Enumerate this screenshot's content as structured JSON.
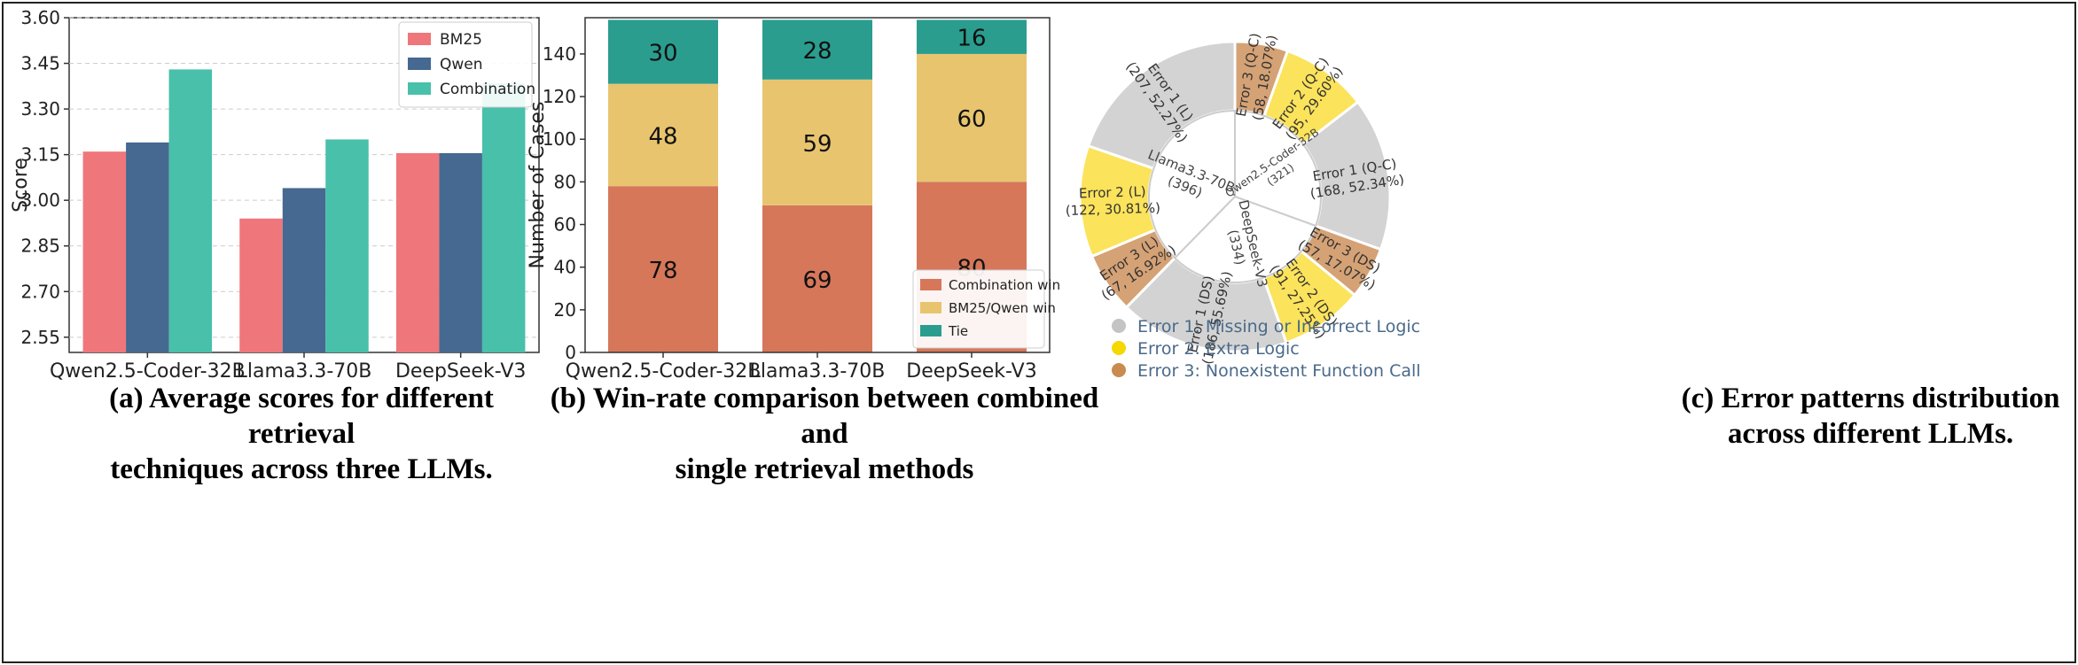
{
  "panel_a": {
    "caption_line1": "(a) Average scores for different retrieval",
    "caption_line2": "techniques across three LLMs."
  },
  "panel_b": {
    "caption_line1": "(b) Win-rate comparison between combined and",
    "caption_line2": "single retrieval methods"
  },
  "panel_c": {
    "caption_line1": "(c) Error patterns distribution",
    "caption_line2": "across different LLMs."
  },
  "chart_data": [
    {
      "type": "bar",
      "title": "",
      "xlabel": "",
      "ylabel": "Score",
      "ylim": [
        2.5,
        3.6
      ],
      "yticks": [
        "2.55",
        "2.70",
        "2.85",
        "3.00",
        "3.15",
        "3.30",
        "3.45",
        "3.60"
      ],
      "categories": [
        "Qwen2.5-Coder-32B",
        "Llama3.3-70B",
        "DeepSeek-V3"
      ],
      "series": [
        {
          "name": "BM25",
          "color": "#EF767A",
          "values": [
            3.16,
            2.94,
            3.155
          ]
        },
        {
          "name": "Qwen",
          "color": "#456990",
          "values": [
            3.19,
            3.04,
            3.155
          ]
        },
        {
          "name": "Combination",
          "color": "#48C0AA",
          "values": [
            3.43,
            3.2,
            3.385
          ]
        }
      ],
      "legend": "top-right",
      "grid": "horizontal dashed"
    },
    {
      "type": "bar",
      "stacked": true,
      "title": "",
      "xlabel": "",
      "ylabel": "Number of Cases",
      "ylim": [
        0,
        157
      ],
      "yticks": [
        "0",
        "20",
        "40",
        "60",
        "80",
        "100",
        "120",
        "140"
      ],
      "categories": [
        "Qwen2.5-Coder-32B",
        "Llama3.3-70B",
        "DeepSeek-V3"
      ],
      "series": [
        {
          "name": "Combination win",
          "color": "#D6775A",
          "values": [
            78,
            69,
            80
          ],
          "labels": [
            "78",
            "69",
            "80"
          ]
        },
        {
          "name": "BM25/Qwen win",
          "color": "#E8C46F",
          "values": [
            48,
            59,
            60
          ],
          "labels": [
            "48",
            "59",
            "60"
          ]
        },
        {
          "name": "Tie",
          "color": "#2A9D8F",
          "values": [
            30,
            28,
            16
          ],
          "labels": [
            "30",
            "28",
            "16"
          ]
        }
      ],
      "legend": "bottom-right"
    },
    {
      "type": "pie",
      "subtype": "sunburst",
      "inner": [
        {
          "label": "Qwen2.5-Coder-32B",
          "count_label": "(321)",
          "value": 321
        },
        {
          "label": "DeepSeek-V3",
          "count_label": "(334)",
          "value": 334
        },
        {
          "label": "Llama3.3-70B",
          "count_label": "(396)",
          "value": 396
        }
      ],
      "outer": [
        {
          "label": "Error 3 (Q-C)",
          "detail": "(58, 18.07%)",
          "value": 58,
          "category": 3
        },
        {
          "label": "Error 2 (Q-C)",
          "detail": "(95, 29.60%)",
          "value": 95,
          "category": 2
        },
        {
          "label": "Error 1 (Q-C)",
          "detail": "(168, 52.34%)",
          "value": 168,
          "category": 1
        },
        {
          "label": "Error 3 (DS)",
          "detail": "(57, 17.07%)",
          "value": 57,
          "category": 3
        },
        {
          "label": "Error 2 (DS)",
          "detail": "(91, 27.25%)",
          "value": 91,
          "category": 2
        },
        {
          "label": "Error 1 (DS)",
          "detail": "(186, 55.69%)",
          "value": 186,
          "category": 1
        },
        {
          "label": "Error 3 (L)",
          "detail": "(67, 16.92%)",
          "value": 67,
          "category": 3
        },
        {
          "label": "Error 2 (L)",
          "detail": "(122, 30.81%)",
          "value": 122,
          "category": 2
        },
        {
          "label": "Error 1 (L)",
          "detail": "(207, 52.27%)",
          "value": 207,
          "category": 1
        }
      ],
      "category_colors": {
        "1": "#D3D3D3",
        "2": "#FBE35B",
        "3": "#D5A275"
      },
      "legend_dot_colors": {
        "1": "#C4C4C4",
        "2": "#F5D800",
        "3": "#C98B4F"
      },
      "legend": [
        "Error 1: Missing or Incorrect Logic",
        "Error 2: Extra Logic",
        "Error 3: Nonexistent Function Call"
      ],
      "legend_text_color": "#4A6A8A"
    }
  ]
}
